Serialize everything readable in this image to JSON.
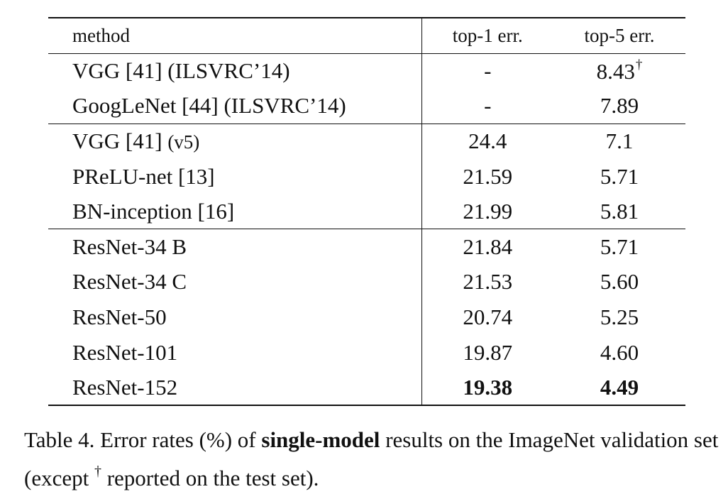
{
  "table": {
    "headers": {
      "method": "method",
      "top1": "top-1 err.",
      "top5": "top-5 err."
    },
    "groups": [
      {
        "rows": [
          {
            "method": "VGG [41] (ILSVRC’14)",
            "top1": "-",
            "top5": "8.43",
            "top5_mark": "†"
          },
          {
            "method": "GoogLeNet [44] (ILSVRC’14)",
            "top1": "-",
            "top5": "7.89"
          }
        ]
      },
      {
        "rows": [
          {
            "method": "VGG [41]",
            "method_suffix": "(v5)",
            "top1": "24.4",
            "top5": "7.1"
          },
          {
            "method": "PReLU-net [13]",
            "top1": "21.59",
            "top5": "5.71"
          },
          {
            "method": "BN-inception [16]",
            "top1": "21.99",
            "top5": "5.81"
          }
        ]
      },
      {
        "rows": [
          {
            "method": "ResNet-34 B",
            "top1": "21.84",
            "top5": "5.71"
          },
          {
            "method": "ResNet-34 C",
            "top1": "21.53",
            "top5": "5.60"
          },
          {
            "method": "ResNet-50",
            "top1": "20.74",
            "top5": "5.25"
          },
          {
            "method": "ResNet-101",
            "top1": "19.87",
            "top5": "4.60"
          },
          {
            "method": "ResNet-152",
            "top1": "19.38",
            "top5": "4.49",
            "bold_values": true
          }
        ]
      }
    ]
  },
  "caption": {
    "prefix": "Table 4. Error rates (%) of ",
    "bold": "single-model",
    "middle": " results on the ImageNet validation set (except ",
    "dagger": "†",
    "suffix": " reported on the test set)."
  }
}
